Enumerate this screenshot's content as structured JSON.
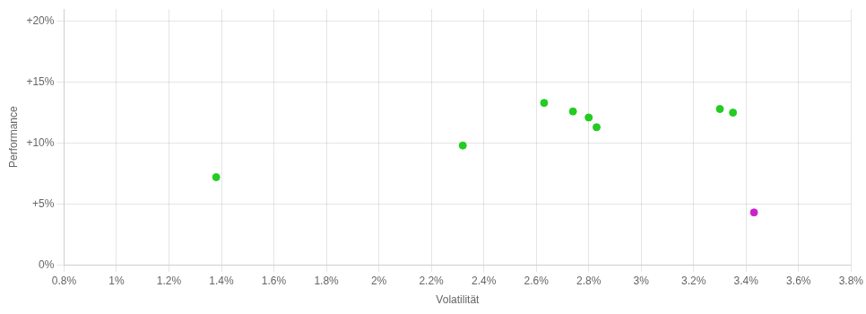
{
  "chart_data": {
    "type": "scatter",
    "xlabel": "Volatilität",
    "ylabel": "Performance",
    "xlim": [
      0.008,
      0.038
    ],
    "ylim": [
      0.0,
      0.21
    ],
    "xticks": [
      {
        "value": 0.008,
        "label": "0.8%"
      },
      {
        "value": 0.01,
        "label": "1%"
      },
      {
        "value": 0.012,
        "label": "1.2%"
      },
      {
        "value": 0.014,
        "label": "1.4%"
      },
      {
        "value": 0.016,
        "label": "1.6%"
      },
      {
        "value": 0.018,
        "label": "1.8%"
      },
      {
        "value": 0.02,
        "label": "2%"
      },
      {
        "value": 0.022,
        "label": "2.2%"
      },
      {
        "value": 0.024,
        "label": "2.4%"
      },
      {
        "value": 0.026,
        "label": "2.6%"
      },
      {
        "value": 0.028,
        "label": "2.8%"
      },
      {
        "value": 0.03,
        "label": "3%"
      },
      {
        "value": 0.032,
        "label": "3.2%"
      },
      {
        "value": 0.034,
        "label": "3.4%"
      },
      {
        "value": 0.036,
        "label": "3.6%"
      },
      {
        "value": 0.038,
        "label": "3.8%"
      }
    ],
    "yticks": [
      {
        "value": 0.0,
        "label": "0%"
      },
      {
        "value": 0.05,
        "label": "+5%"
      },
      {
        "value": 0.1,
        "label": "+10%"
      },
      {
        "value": 0.15,
        "label": "+15%"
      },
      {
        "value": 0.2,
        "label": "+20%"
      }
    ],
    "grid": true,
    "series": [
      {
        "color": "#22cc22",
        "x": [
          0.0138,
          0.0232,
          0.0263,
          0.0274,
          0.028,
          0.0283,
          0.033,
          0.0335
        ],
        "values": [
          0.072,
          0.098,
          0.133,
          0.126,
          0.121,
          0.113,
          0.128,
          0.125
        ]
      },
      {
        "color": "#cc22cc",
        "x": [
          0.0343
        ],
        "values": [
          0.043
        ]
      }
    ]
  }
}
